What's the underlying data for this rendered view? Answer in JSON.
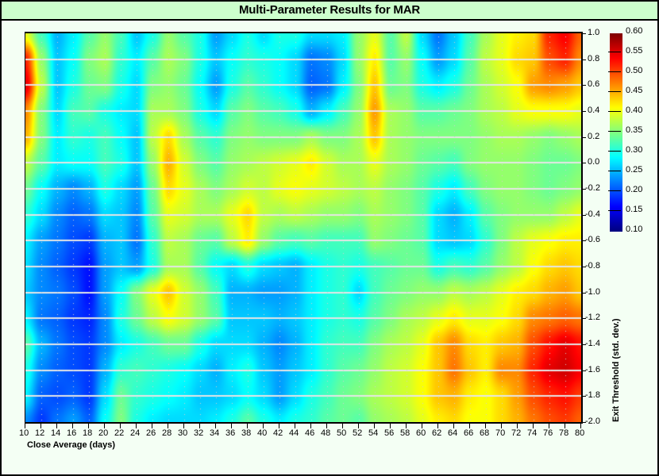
{
  "title": "Multi-Parameter Results for MAR",
  "colors": {
    "background": "#f4fff4",
    "title_bar": "#ccffcc",
    "border": "#000000",
    "gridline": "#e6e6e6"
  },
  "chart_data": {
    "type": "heatmap",
    "title": "Multi-Parameter Results for MAR",
    "xlabel": "Close Average (days)",
    "ylabel": "Exit Threshold (std. dev.)",
    "x": [
      10,
      12,
      14,
      16,
      18,
      20,
      22,
      24,
      26,
      28,
      30,
      32,
      34,
      36,
      38,
      40,
      42,
      44,
      46,
      48,
      50,
      52,
      54,
      56,
      58,
      60,
      62,
      64,
      66,
      68,
      70,
      72,
      74,
      76,
      78,
      80
    ],
    "y": [
      1.0,
      0.8,
      0.6,
      0.4,
      0.2,
      0.0,
      -0.2,
      -0.4,
      -0.6,
      -0.8,
      -1.0,
      -1.2,
      -1.4,
      -1.6,
      -1.8,
      -2.0
    ],
    "xlim": [
      10,
      80
    ],
    "ylim": [
      -2.0,
      1.0
    ],
    "x_tick_labels": [
      "10",
      "12",
      "14",
      "16",
      "18",
      "20",
      "22",
      "24",
      "26",
      "28",
      "30",
      "32",
      "34",
      "36",
      "38",
      "40",
      "42",
      "44",
      "46",
      "48",
      "50",
      "52",
      "54",
      "56",
      "58",
      "60",
      "62",
      "64",
      "66",
      "68",
      "70",
      "72",
      "74",
      "76",
      "78",
      "80"
    ],
    "y_tick_labels": [
      "1.0",
      "0.8",
      "0.6",
      "0.4",
      "0.2",
      "0.0",
      "-0.2",
      "-0.4",
      "-0.6",
      "-0.8",
      "-1.0",
      "-1.2",
      "-1.4",
      "-1.6",
      "-1.8",
      "-2.0"
    ],
    "colorbar": {
      "min": 0.1,
      "max": 0.6,
      "tick_labels": [
        "0.60",
        "0.55",
        "0.50",
        "0.45",
        "0.40",
        "0.35",
        "0.30",
        "0.25",
        "0.20",
        "0.15",
        "0.10"
      ],
      "colormap": "jet",
      "position": "right"
    },
    "grid": {
      "horizontal": true,
      "vertical_dotted": true
    },
    "values": [
      [
        0.4,
        0.32,
        0.25,
        0.28,
        0.33,
        0.36,
        0.32,
        0.26,
        0.3,
        0.36,
        0.33,
        0.3,
        0.24,
        0.27,
        0.3,
        0.27,
        0.3,
        0.3,
        0.27,
        0.27,
        0.28,
        0.36,
        0.4,
        0.33,
        0.38,
        0.27,
        0.22,
        0.26,
        0.32,
        0.37,
        0.4,
        0.42,
        0.43,
        0.52,
        0.54,
        0.49
      ],
      [
        0.52,
        0.36,
        0.26,
        0.29,
        0.35,
        0.37,
        0.31,
        0.28,
        0.33,
        0.37,
        0.35,
        0.3,
        0.26,
        0.29,
        0.31,
        0.3,
        0.29,
        0.27,
        0.22,
        0.23,
        0.27,
        0.36,
        0.42,
        0.33,
        0.36,
        0.29,
        0.24,
        0.27,
        0.33,
        0.38,
        0.4,
        0.43,
        0.44,
        0.5,
        0.52,
        0.47
      ],
      [
        0.55,
        0.38,
        0.26,
        0.3,
        0.34,
        0.35,
        0.3,
        0.27,
        0.35,
        0.36,
        0.34,
        0.29,
        0.24,
        0.3,
        0.33,
        0.31,
        0.29,
        0.27,
        0.21,
        0.22,
        0.28,
        0.35,
        0.44,
        0.34,
        0.35,
        0.3,
        0.28,
        0.3,
        0.34,
        0.37,
        0.39,
        0.41,
        0.46,
        0.47,
        0.46,
        0.44
      ],
      [
        0.47,
        0.35,
        0.27,
        0.32,
        0.33,
        0.3,
        0.28,
        0.27,
        0.37,
        0.37,
        0.35,
        0.3,
        0.27,
        0.33,
        0.35,
        0.33,
        0.32,
        0.3,
        0.25,
        0.28,
        0.32,
        0.36,
        0.46,
        0.37,
        0.36,
        0.33,
        0.33,
        0.34,
        0.35,
        0.37,
        0.38,
        0.4,
        0.41,
        0.41,
        0.41,
        0.4
      ],
      [
        0.45,
        0.35,
        0.28,
        0.31,
        0.3,
        0.32,
        0.29,
        0.26,
        0.38,
        0.43,
        0.37,
        0.33,
        0.31,
        0.35,
        0.36,
        0.35,
        0.35,
        0.35,
        0.37,
        0.35,
        0.35,
        0.37,
        0.44,
        0.37,
        0.36,
        0.35,
        0.35,
        0.35,
        0.35,
        0.36,
        0.37,
        0.37,
        0.36,
        0.35,
        0.36,
        0.37
      ],
      [
        0.38,
        0.33,
        0.28,
        0.29,
        0.29,
        0.32,
        0.3,
        0.26,
        0.36,
        0.45,
        0.39,
        0.35,
        0.33,
        0.36,
        0.37,
        0.38,
        0.39,
        0.4,
        0.42,
        0.39,
        0.37,
        0.37,
        0.4,
        0.37,
        0.36,
        0.34,
        0.33,
        0.32,
        0.35,
        0.36,
        0.36,
        0.36,
        0.35,
        0.34,
        0.34,
        0.35
      ],
      [
        0.34,
        0.29,
        0.25,
        0.23,
        0.25,
        0.3,
        0.27,
        0.24,
        0.34,
        0.43,
        0.4,
        0.37,
        0.35,
        0.37,
        0.39,
        0.38,
        0.4,
        0.41,
        0.4,
        0.39,
        0.38,
        0.37,
        0.38,
        0.36,
        0.35,
        0.33,
        0.3,
        0.28,
        0.32,
        0.35,
        0.36,
        0.36,
        0.35,
        0.34,
        0.35,
        0.36
      ],
      [
        0.31,
        0.27,
        0.23,
        0.21,
        0.22,
        0.27,
        0.26,
        0.23,
        0.33,
        0.4,
        0.39,
        0.37,
        0.37,
        0.4,
        0.43,
        0.38,
        0.37,
        0.38,
        0.37,
        0.36,
        0.36,
        0.35,
        0.37,
        0.36,
        0.35,
        0.33,
        0.27,
        0.25,
        0.28,
        0.33,
        0.35,
        0.36,
        0.36,
        0.36,
        0.38,
        0.4
      ],
      [
        0.28,
        0.24,
        0.22,
        0.2,
        0.19,
        0.25,
        0.26,
        0.22,
        0.31,
        0.38,
        0.37,
        0.34,
        0.33,
        0.38,
        0.42,
        0.36,
        0.33,
        0.32,
        0.33,
        0.32,
        0.32,
        0.32,
        0.36,
        0.35,
        0.34,
        0.33,
        0.27,
        0.26,
        0.27,
        0.31,
        0.35,
        0.38,
        0.4,
        0.41,
        0.42,
        0.42
      ],
      [
        0.27,
        0.23,
        0.21,
        0.19,
        0.17,
        0.24,
        0.26,
        0.24,
        0.3,
        0.37,
        0.37,
        0.33,
        0.29,
        0.27,
        0.3,
        0.27,
        0.26,
        0.25,
        0.28,
        0.3,
        0.31,
        0.3,
        0.32,
        0.33,
        0.34,
        0.34,
        0.3,
        0.32,
        0.31,
        0.33,
        0.36,
        0.38,
        0.41,
        0.43,
        0.44,
        0.43
      ],
      [
        0.26,
        0.23,
        0.22,
        0.2,
        0.17,
        0.24,
        0.29,
        0.35,
        0.4,
        0.44,
        0.39,
        0.36,
        0.32,
        0.25,
        0.25,
        0.24,
        0.24,
        0.25,
        0.28,
        0.3,
        0.31,
        0.27,
        0.32,
        0.34,
        0.35,
        0.36,
        0.36,
        0.38,
        0.37,
        0.38,
        0.4,
        0.42,
        0.43,
        0.45,
        0.46,
        0.44
      ],
      [
        0.28,
        0.22,
        0.21,
        0.19,
        0.18,
        0.23,
        0.3,
        0.34,
        0.38,
        0.41,
        0.39,
        0.36,
        0.33,
        0.26,
        0.26,
        0.26,
        0.25,
        0.26,
        0.28,
        0.3,
        0.31,
        0.3,
        0.33,
        0.35,
        0.37,
        0.38,
        0.4,
        0.42,
        0.4,
        0.4,
        0.41,
        0.43,
        0.47,
        0.48,
        0.49,
        0.48
      ],
      [
        0.33,
        0.25,
        0.22,
        0.2,
        0.19,
        0.23,
        0.28,
        0.3,
        0.32,
        0.34,
        0.34,
        0.3,
        0.27,
        0.27,
        0.27,
        0.25,
        0.23,
        0.25,
        0.28,
        0.31,
        0.32,
        0.32,
        0.35,
        0.37,
        0.38,
        0.4,
        0.44,
        0.47,
        0.43,
        0.42,
        0.44,
        0.45,
        0.5,
        0.53,
        0.55,
        0.53
      ],
      [
        0.3,
        0.23,
        0.21,
        0.2,
        0.19,
        0.25,
        0.31,
        0.32,
        0.31,
        0.3,
        0.29,
        0.27,
        0.25,
        0.28,
        0.3,
        0.26,
        0.24,
        0.26,
        0.28,
        0.31,
        0.33,
        0.34,
        0.36,
        0.38,
        0.39,
        0.41,
        0.44,
        0.48,
        0.44,
        0.42,
        0.47,
        0.47,
        0.52,
        0.55,
        0.56,
        0.54
      ],
      [
        0.28,
        0.21,
        0.2,
        0.21,
        0.19,
        0.27,
        0.34,
        0.31,
        0.3,
        0.29,
        0.28,
        0.26,
        0.26,
        0.27,
        0.29,
        0.27,
        0.24,
        0.27,
        0.3,
        0.32,
        0.34,
        0.35,
        0.37,
        0.38,
        0.39,
        0.41,
        0.44,
        0.45,
        0.42,
        0.41,
        0.43,
        0.46,
        0.5,
        0.52,
        0.53,
        0.51
      ],
      [
        0.23,
        0.19,
        0.22,
        0.24,
        0.21,
        0.29,
        0.35,
        0.3,
        0.28,
        0.27,
        0.27,
        0.27,
        0.28,
        0.3,
        0.33,
        0.3,
        0.28,
        0.3,
        0.31,
        0.33,
        0.34,
        0.33,
        0.36,
        0.37,
        0.38,
        0.4,
        0.42,
        0.43,
        0.41,
        0.41,
        0.43,
        0.45,
        0.48,
        0.5,
        0.51,
        0.49
      ]
    ]
  }
}
